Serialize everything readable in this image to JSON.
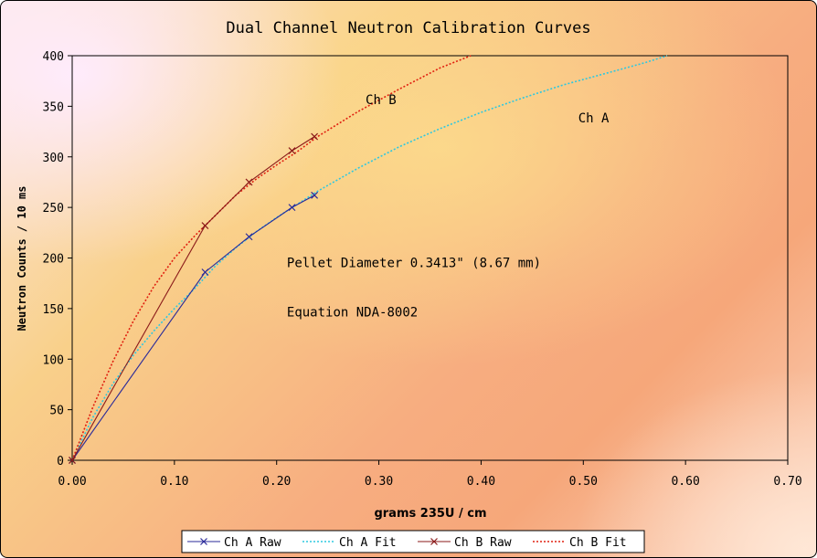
{
  "chart_data": {
    "type": "line",
    "title": "Dual Channel Neutron Calibration Curves",
    "xlabel": "grams 235U / cm",
    "ylabel": "Neutron Counts / 10 ms",
    "xlim": [
      0,
      0.7
    ],
    "ylim": [
      0,
      400
    ],
    "x_ticks": [
      "0.00",
      "0.10",
      "0.20",
      "0.30",
      "0.40",
      "0.50",
      "0.60",
      "0.70"
    ],
    "y_ticks": [
      "0",
      "50",
      "100",
      "150",
      "200",
      "250",
      "300",
      "350",
      "400"
    ],
    "grid": false,
    "legend_position": "bottom",
    "series": [
      {
        "name": "Ch A Raw",
        "color": "#2a2a9a",
        "style": "solid-x",
        "points": [
          [
            0,
            0
          ],
          [
            0.13,
            186
          ],
          [
            0.173,
            221
          ],
          [
            0.215,
            250
          ],
          [
            0.237,
            262
          ]
        ]
      },
      {
        "name": "Ch A Fit",
        "color": "#2ec8e0",
        "style": "dotted",
        "points": [
          [
            0,
            0
          ],
          [
            0.02,
            42
          ],
          [
            0.04,
            76
          ],
          [
            0.06,
            104
          ],
          [
            0.08,
            128
          ],
          [
            0.1,
            150
          ],
          [
            0.12,
            170
          ],
          [
            0.14,
            192
          ],
          [
            0.16,
            210
          ],
          [
            0.18,
            226
          ],
          [
            0.2,
            240
          ],
          [
            0.24,
            266
          ],
          [
            0.28,
            289
          ],
          [
            0.32,
            310
          ],
          [
            0.36,
            328
          ],
          [
            0.4,
            344
          ],
          [
            0.44,
            358
          ],
          [
            0.48,
            371
          ],
          [
            0.52,
            382
          ],
          [
            0.56,
            393
          ],
          [
            0.582,
            400
          ]
        ]
      },
      {
        "name": "Ch B Raw",
        "color": "#8b1a1a",
        "style": "solid-x",
        "points": [
          [
            0,
            0
          ],
          [
            0.13,
            232
          ],
          [
            0.173,
            275
          ],
          [
            0.215,
            306
          ],
          [
            0.237,
            320
          ]
        ]
      },
      {
        "name": "Ch B Fit",
        "color": "#e02010",
        "style": "dotted",
        "points": [
          [
            0,
            0
          ],
          [
            0.02,
            52
          ],
          [
            0.04,
            98
          ],
          [
            0.06,
            138
          ],
          [
            0.08,
            172
          ],
          [
            0.1,
            200
          ],
          [
            0.12,
            222
          ],
          [
            0.14,
            242
          ],
          [
            0.16,
            262
          ],
          [
            0.18,
            278
          ],
          [
            0.2,
            292
          ],
          [
            0.22,
            305
          ],
          [
            0.24,
            320
          ],
          [
            0.28,
            345
          ],
          [
            0.32,
            367
          ],
          [
            0.36,
            388
          ],
          [
            0.39,
            400
          ]
        ]
      }
    ],
    "annotations": [
      {
        "text": "Ch B",
        "x": 0.287,
        "y": 352
      },
      {
        "text": "Ch A",
        "x": 0.495,
        "y": 334
      },
      {
        "text": "Pellet Diameter 0.3413\" (8.67 mm)",
        "x": 0.21,
        "y": 191
      },
      {
        "text": "Equation NDA-8002",
        "x": 0.21,
        "y": 142
      }
    ]
  }
}
